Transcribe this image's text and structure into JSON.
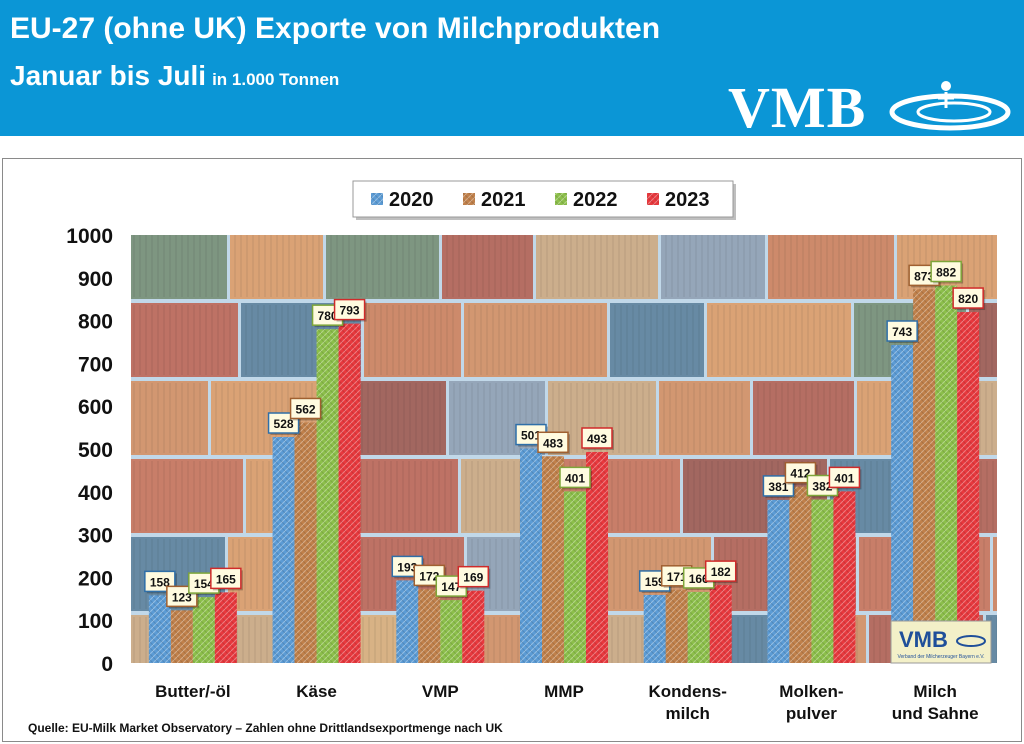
{
  "header": {
    "title_line1": "EU-27 (ohne UK) Exporte von Milchprodukten",
    "title_line2": "Januar bis Juli",
    "unit": "in 1.000 Tonnen",
    "logo_text": "VMB",
    "background_color": "#0b96d6"
  },
  "source_note": "Quelle: EU-Milk Market Observatory – Zahlen ohne Drittlandsexportmenge nach UK",
  "inset_logo": {
    "text": "VMB",
    "caption": "Verband der Milcherzeuger Bayern e.V."
  },
  "chart_data": {
    "type": "bar",
    "categories": [
      [
        "Butter/-öl"
      ],
      [
        "Käse"
      ],
      [
        "VMP"
      ],
      [
        "MMP"
      ],
      [
        "Kondens-",
        "milch"
      ],
      [
        "Molken-",
        "pulver"
      ],
      [
        "Milch",
        "und Sahne"
      ]
    ],
    "series": [
      {
        "name": "2020",
        "color": "#5b9bd5",
        "values": [
          158,
          528,
          193,
          501,
          159,
          381,
          743
        ]
      },
      {
        "name": "2021",
        "color": "#c0804a",
        "values": [
          123,
          562,
          172,
          483,
          171,
          412,
          873
        ]
      },
      {
        "name": "2022",
        "color": "#8cbf4a",
        "values": [
          154,
          780,
          147,
          401,
          166,
          382,
          882
        ]
      },
      {
        "name": "2023",
        "color": "#e8383d",
        "values": [
          165,
          793,
          169,
          493,
          182,
          401,
          820
        ]
      }
    ],
    "ylim": [
      0,
      1000
    ],
    "yticks": [
      0,
      100,
      200,
      300,
      400,
      500,
      600,
      700,
      800,
      900,
      1000
    ],
    "grid": false,
    "legend_position": "top-center",
    "background": "photo of stacked shipping containers"
  }
}
